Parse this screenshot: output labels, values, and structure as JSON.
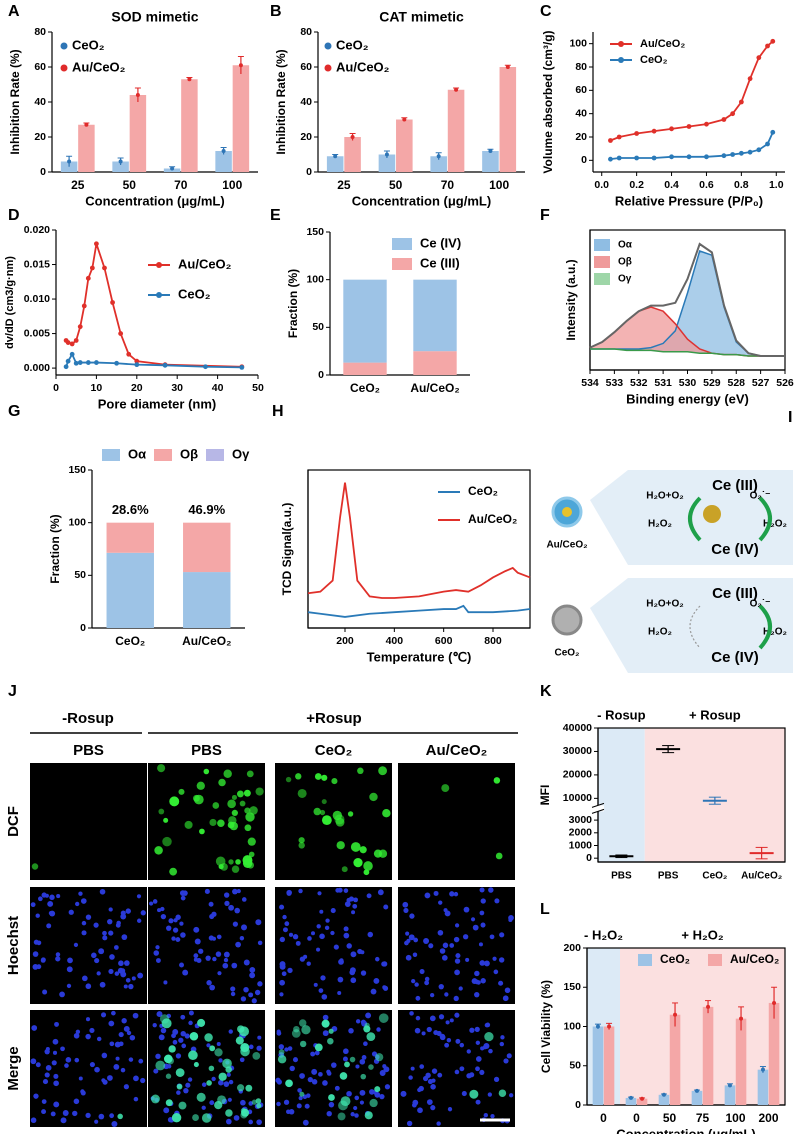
{
  "chart_data": [
    {
      "panel": "A",
      "type": "bar",
      "title": "SOD mimetic",
      "xlabel": "Concentration (μg/mL)",
      "ylabel": "Inhibition Rate (%)",
      "categories": [
        "25",
        "50",
        "70",
        "100"
      ],
      "ylim": [
        0,
        80
      ],
      "yticks": [
        0,
        20,
        40,
        60,
        80
      ],
      "series": [
        {
          "name": "CeO₂",
          "color": "#9dc3e6",
          "marker_color": "#2e75b6",
          "values": [
            6,
            6,
            2,
            12
          ],
          "errors": [
            3,
            2,
            1,
            2
          ]
        },
        {
          "name": "Au/CeO₂",
          "color": "#f4a7a7",
          "marker_color": "#e02b2b",
          "values": [
            27,
            44,
            53,
            61
          ],
          "errors": [
            1,
            4,
            1,
            5
          ]
        }
      ]
    },
    {
      "panel": "B",
      "type": "bar",
      "title": "CAT mimetic",
      "xlabel": "Concentration (μg/mL)",
      "ylabel": "Inhibition Rate (%)",
      "categories": [
        "25",
        "50",
        "70",
        "100"
      ],
      "ylim": [
        0,
        80
      ],
      "yticks": [
        0,
        20,
        40,
        60,
        80
      ],
      "series": [
        {
          "name": "CeO₂",
          "color": "#9dc3e6",
          "marker_color": "#2e75b6",
          "values": [
            9,
            10,
            9,
            12
          ],
          "errors": [
            1,
            2,
            2,
            1
          ]
        },
        {
          "name": "Au/CeO₂",
          "color": "#f4a7a7",
          "marker_color": "#e02b2b",
          "values": [
            20,
            30,
            47,
            60
          ],
          "errors": [
            2,
            1,
            1,
            1
          ]
        }
      ]
    },
    {
      "panel": "C",
      "type": "line",
      "markers": true,
      "xlabel": "Relative Pressure (P/P₀)",
      "ylabel": "Volume absorbed (cm³/g)",
      "x": [
        0.05,
        0.1,
        0.2,
        0.3,
        0.4,
        0.5,
        0.6,
        0.7,
        0.75,
        0.8,
        0.85,
        0.9,
        0.95,
        0.98
      ],
      "xlim": [
        -0.05,
        1.05
      ],
      "xticks": [
        {
          "value": 0,
          "label": "0.0"
        },
        0.2,
        0.4,
        0.6,
        0.8,
        {
          "value": 1,
          "label": "1.0"
        }
      ],
      "ylim": [
        -10,
        110
      ],
      "yticks": [
        0,
        20,
        40,
        60,
        80,
        100
      ],
      "series": [
        {
          "name": "Au/CeO₂",
          "color": "#e0302a",
          "values": [
            17,
            20,
            23,
            25,
            27,
            29,
            31,
            35,
            40,
            50,
            70,
            88,
            98,
            102
          ]
        },
        {
          "name": "CeO₂",
          "color": "#2a7ab8",
          "values": [
            1,
            2,
            2,
            2,
            3,
            3,
            3,
            4,
            5,
            6,
            7,
            9,
            14,
            24
          ]
        }
      ]
    },
    {
      "panel": "D",
      "type": "line",
      "markers": true,
      "xlabel": "Pore diameter (nm)",
      "ylabel": "dv/dD (cm3/g·nm)",
      "xlim": [
        0,
        50
      ],
      "xticks": [
        0,
        10,
        20,
        30,
        40,
        50
      ],
      "ylim": [
        -0.001,
        0.02
      ],
      "yticks": [
        {
          "value": 0,
          "label": "0.000"
        },
        0.005,
        {
          "value": 0.01,
          "label": "0.010"
        },
        0.015,
        {
          "value": 0.02,
          "label": "0.020"
        }
      ],
      "series": [
        {
          "name": "Au/CeO₂",
          "color": "#e0302a",
          "x": [
            2.5,
            3,
            4,
            5,
            6,
            7,
            8,
            9,
            10,
            12,
            14,
            16,
            18,
            20,
            27,
            46
          ],
          "values": [
            0.004,
            0.0037,
            0.0035,
            0.004,
            0.006,
            0.009,
            0.013,
            0.0145,
            0.018,
            0.0145,
            0.0095,
            0.005,
            0.002,
            0.001,
            0.0005,
            0.0002
          ]
        },
        {
          "name": "CeO₂",
          "color": "#2a7ab8",
          "x": [
            2.5,
            3,
            4,
            5,
            6,
            8,
            10,
            15,
            20,
            27,
            37,
            46
          ],
          "values": [
            0.0002,
            0.001,
            0.002,
            0.0007,
            0.0008,
            0.0008,
            0.0008,
            0.0007,
            0.0005,
            0.0004,
            0.0002,
            0.0001
          ]
        }
      ]
    },
    {
      "panel": "E",
      "type": "bar",
      "stacked": true,
      "legend_reverse": true,
      "ylabel": "Fraction (%)",
      "categories": [
        "CeO₂",
        "Au/CeO₂"
      ],
      "ylim": [
        0,
        150
      ],
      "yticks": [
        0,
        50,
        100,
        150
      ],
      "series": [
        {
          "name": "Ce (III)",
          "color": "#f4a7a7",
          "values": [
            13,
            25
          ]
        },
        {
          "name": "Ce (IV)",
          "color": "#9dc3e6",
          "values": [
            87,
            75
          ]
        }
      ]
    },
    {
      "panel": "F",
      "type": "area",
      "xlabel": "Binding energy (eV)",
      "ylabel": "Intensity (a.u.)",
      "x": [
        534,
        533.5,
        533,
        532.5,
        532,
        531.5,
        531,
        530.5,
        530,
        529.5,
        529,
        528.5,
        528,
        527.5,
        527,
        526.5,
        526
      ],
      "xlim": [
        534,
        526
      ],
      "xticks": [
        534,
        533,
        532,
        531,
        530,
        529,
        528,
        527,
        526
      ],
      "ylim": [
        0,
        100
      ],
      "envelope": {
        "color": "#666666",
        "values": [
          16,
          20,
          27,
          35,
          42,
          46,
          46,
          48,
          65,
          90,
          84,
          46,
          21,
          12,
          10,
          10,
          10
        ]
      },
      "series": [
        {
          "name": "Oα",
          "color": "#8fbde3",
          "line_color": "#2a7ab8",
          "values": [
            15,
            15,
            15,
            15,
            15,
            16,
            19,
            28,
            55,
            85,
            82,
            45,
            20,
            12,
            10,
            10,
            10
          ]
        },
        {
          "name": "Oβ",
          "color": "#ef9a9a",
          "line_color": "#d33",
          "values": [
            16,
            20,
            27,
            35,
            42,
            45,
            42,
            33,
            22,
            15,
            12,
            11,
            11,
            10,
            10,
            10,
            10
          ]
        },
        {
          "name": "Oγ",
          "color": "#9ed6a8",
          "line_color": "#3a9a4a",
          "values": [
            15,
            15,
            15,
            14,
            14,
            14,
            13,
            13,
            13,
            12,
            12,
            11,
            11,
            10,
            10,
            10,
            10
          ]
        }
      ]
    },
    {
      "panel": "G",
      "type": "bar",
      "stacked": true,
      "ylabel": "Fraction (%)",
      "categories": [
        "CeO₂",
        "Au/CeO₂"
      ],
      "ylim": [
        0,
        150
      ],
      "yticks": [
        0,
        50,
        100,
        150
      ],
      "series": [
        {
          "name": "Oα",
          "color": "#9dc3e6",
          "values": [
            71.4,
            53.1
          ]
        },
        {
          "name": "Oβ",
          "color": "#f4a7a7",
          "values": [
            28.6,
            46.9
          ],
          "value_labels": [
            "28.6%",
            "46.9%"
          ]
        },
        {
          "name": "Oγ",
          "color": "#b7b7e6",
          "values": [
            0,
            0
          ]
        }
      ]
    },
    {
      "panel": "H",
      "type": "line",
      "markers": false,
      "xlabel": "Temperature (℃)",
      "ylabel": "TCD Signal(a.u.)",
      "xlim": [
        50,
        950
      ],
      "xticks": [
        200,
        400,
        600,
        800
      ],
      "ylim": [
        0,
        100
      ],
      "series": [
        {
          "name": "CeO₂",
          "color": "#2a7ab8",
          "x": [
            50,
            100,
            200,
            300,
            400,
            500,
            600,
            650,
            680,
            700,
            800,
            900,
            950
          ],
          "values": [
            10,
            9,
            7,
            9,
            10,
            11,
            12,
            12,
            14,
            10,
            10,
            11,
            12
          ]
        },
        {
          "name": "Au/CeO₂",
          "color": "#e0302a",
          "x": [
            50,
            100,
            150,
            180,
            200,
            220,
            250,
            300,
            350,
            400,
            500,
            600,
            650,
            700,
            750,
            800,
            850,
            880,
            900,
            950
          ],
          "values": [
            22,
            23,
            30,
            70,
            92,
            70,
            30,
            20,
            19,
            19,
            20,
            23,
            24,
            23,
            27,
            32,
            36,
            38,
            35,
            32
          ]
        }
      ]
    },
    {
      "panel": "K",
      "type": "dot",
      "ylabel": "MFI",
      "categories": [
        "PBS",
        "PBS",
        "CeO₂",
        "Au/CeO₂"
      ],
      "values": [
        150,
        31000,
        9000,
        400
      ],
      "errors": [
        100,
        1500,
        1500,
        450
      ],
      "colors": [
        "#000000",
        "#000000",
        "#2e75b6",
        "#e02b2b"
      ],
      "ylim": [
        -300,
        40000
      ],
      "ybreak": [
        3500,
        8000
      ],
      "yticks": [
        0,
        1000,
        2000,
        3000,
        10000,
        20000,
        30000,
        40000
      ],
      "regions": [
        {
          "label": "- Rosup",
          "color": "#dceaf6",
          "text_color": "#2e75b6"
        },
        {
          "label": "+ Rosup",
          "color": "#fbe0e0",
          "text_color": "#e02b2b"
        }
      ]
    },
    {
      "panel": "L",
      "type": "bar",
      "xlabel": "Concentration (μg/mL)",
      "ylabel": "Cell Viability (%)",
      "categories": [
        "0",
        "0",
        "50",
        "75",
        "100",
        "200"
      ],
      "ylim": [
        0,
        200
      ],
      "yticks": [
        0,
        50,
        100,
        150,
        200
      ],
      "regions": [
        {
          "label": "- H₂O₂",
          "color": "#dceaf6",
          "text_color": "#2e75b6"
        },
        {
          "label": "+ H₂O₂",
          "color": "#fbe0e0",
          "text_color": "#e02b2b"
        }
      ],
      "series": [
        {
          "name": "CeO₂",
          "color": "#9dc3e6",
          "marker_color": "#2e75b6",
          "values": [
            100,
            9,
            13,
            18,
            25,
            45
          ],
          "errors": [
            3,
            1,
            1,
            1,
            2,
            4
          ]
        },
        {
          "name": "Au/CeO₂",
          "color": "#f4a7a7",
          "marker_color": "#e02b2b",
          "values": [
            100,
            8,
            115,
            125,
            110,
            130
          ],
          "errors": [
            4,
            1,
            15,
            8,
            15,
            20
          ]
        }
      ]
    }
  ],
  "diagram": {
    "panel": "I",
    "top": {
      "label": "Au/CeO₂",
      "left_in": "H₂O+O₂",
      "left_out": "H₂O₂",
      "upper": "Ce (III)",
      "lower": "Ce (IV)",
      "right_in": "O₂˙⁻",
      "right_out": "H₂O₂"
    },
    "bottom": {
      "label": "CeO₂",
      "left_in": "H₂O+O₂",
      "left_out": "H₂O₂",
      "upper": "Ce (III)",
      "lower": "Ce (IV)",
      "right_in": "O₂˙⁻",
      "right_out": "H₂O₂"
    }
  },
  "images": {
    "panel": "J",
    "groups": [
      "-Rosup",
      "+Rosup"
    ],
    "columns": [
      "PBS",
      "PBS",
      "CeO₂",
      "Au/CeO₂"
    ],
    "rows": [
      "DCF",
      "Hoechst",
      "Merge"
    ]
  }
}
